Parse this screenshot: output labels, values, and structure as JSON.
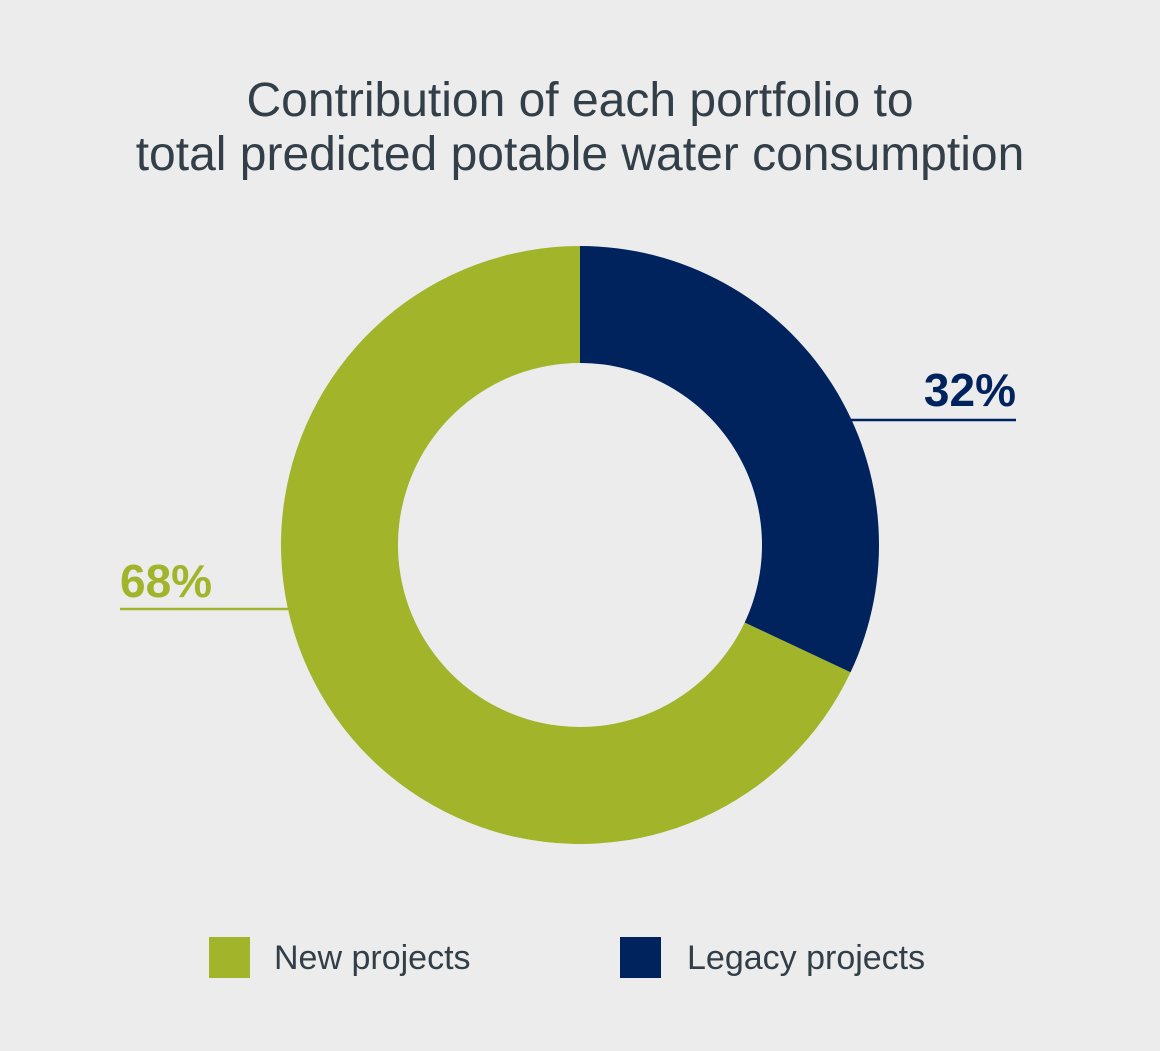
{
  "chart_data": {
    "type": "pie",
    "donut": true,
    "title_lines": [
      "Contribution of each portfolio to",
      "total predicted potable water consumption"
    ],
    "categories": [
      "New projects",
      "Legacy projects"
    ],
    "values": [
      68,
      32
    ],
    "data_labels": [
      "68%",
      "32%"
    ],
    "colors": [
      "#a2b42a",
      "#00235e"
    ],
    "start_angle_deg": 0,
    "direction": "clockwise",
    "first_slice_drawn": "Legacy projects",
    "legend": {
      "position": "bottom",
      "items": [
        {
          "label": "New projects",
          "color": "#a2b42a"
        },
        {
          "label": "Legacy projects",
          "color": "#00235e"
        }
      ]
    }
  },
  "colors": {
    "background": "#ececec",
    "title": "#333f48"
  }
}
